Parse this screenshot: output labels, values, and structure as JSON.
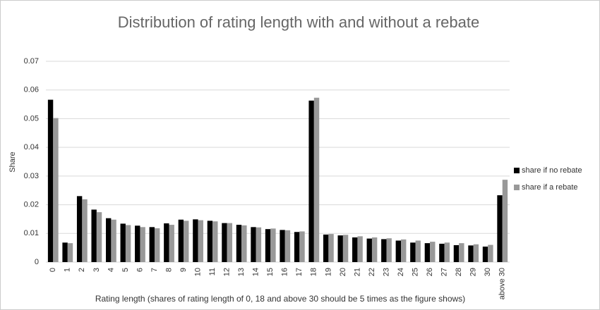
{
  "chart_data": {
    "type": "bar",
    "title": "Distribution of rating length with and without a rebate",
    "x_label": "Rating length (shares of rating length of 0, 18 and above 30 should be 5 times as the figure shows)",
    "y_label": "Share",
    "categories": [
      "0",
      "1",
      "2",
      "3",
      "4",
      "5",
      "6",
      "7",
      "8",
      "9",
      "10",
      "11",
      "12",
      "13",
      "14",
      "15",
      "16",
      "17",
      "18",
      "19",
      "20",
      "21",
      "22",
      "23",
      "24",
      "25",
      "26",
      "27",
      "28",
      "29",
      "30",
      "above 30"
    ],
    "series": [
      {
        "name": "share if no rebate",
        "color": "#000000",
        "values": [
          0.0566,
          0.0068,
          0.023,
          0.0183,
          0.0153,
          0.0134,
          0.0127,
          0.0122,
          0.0135,
          0.0148,
          0.0149,
          0.0144,
          0.0136,
          0.013,
          0.0122,
          0.0115,
          0.0112,
          0.0105,
          0.0563,
          0.0096,
          0.0093,
          0.0086,
          0.0082,
          0.008,
          0.0075,
          0.0068,
          0.0066,
          0.0064,
          0.0059,
          0.0058,
          0.0054,
          0.0233
        ]
      },
      {
        "name": "share if a rebate",
        "color": "#999999",
        "values": [
          0.0502,
          0.0066,
          0.0219,
          0.0174,
          0.0148,
          0.0129,
          0.0122,
          0.0118,
          0.013,
          0.0144,
          0.0146,
          0.0142,
          0.0136,
          0.0128,
          0.0121,
          0.0117,
          0.0111,
          0.0107,
          0.0573,
          0.0098,
          0.0095,
          0.009,
          0.0086,
          0.0083,
          0.0079,
          0.0075,
          0.0071,
          0.0068,
          0.0066,
          0.0062,
          0.006,
          0.0287
        ]
      }
    ],
    "ylim": [
      0,
      0.07
    ],
    "yticks": [
      0,
      0.01,
      0.02,
      0.03,
      0.04,
      0.05,
      0.06,
      0.07
    ],
    "grid": true,
    "legend": "right"
  }
}
